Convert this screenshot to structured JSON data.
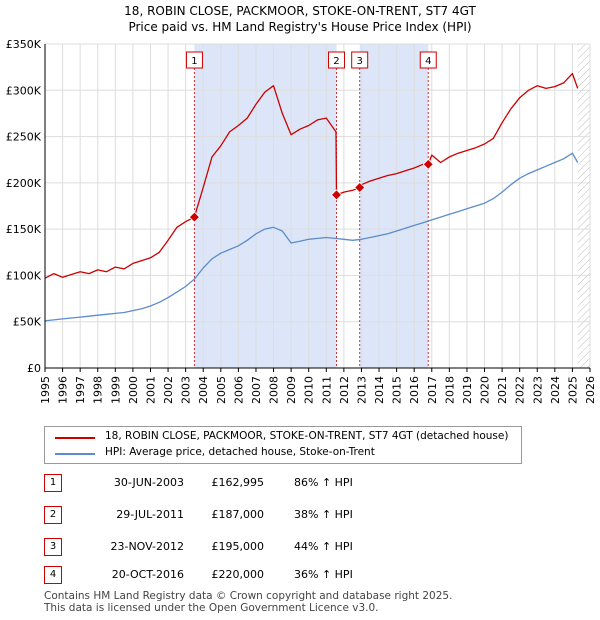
{
  "title_line1": "18, ROBIN CLOSE, PACKMOOR, STOKE-ON-TRENT, ST7 4GT",
  "title_line2": "Price paid vs. HM Land Registry's House Price Index (HPI)",
  "colors": {
    "property": "#cc0000",
    "hpi": "#5b8ccc",
    "shade": "#dce6f8",
    "marker_border": "#cc0000"
  },
  "chart_data": {
    "type": "line",
    "title": "Price paid vs. HM Land Registry's House Price Index (HPI)",
    "xlim": [
      1995,
      2026
    ],
    "ylim": [
      0,
      350000
    ],
    "y_ticks": [
      0,
      50000,
      100000,
      150000,
      200000,
      250000,
      300000,
      350000
    ],
    "y_tick_labels": [
      "£0",
      "£50K",
      "£100K",
      "£150K",
      "£200K",
      "£250K",
      "£300K",
      "£350K"
    ],
    "x_ticks": [
      "1995",
      "1996",
      "1997",
      "1998",
      "1999",
      "2000",
      "2001",
      "2002",
      "2003",
      "2004",
      "2005",
      "2006",
      "2007",
      "2008",
      "2009",
      "2010",
      "2011",
      "2012",
      "2013",
      "2014",
      "2015",
      "2016",
      "2017",
      "2018",
      "2019",
      "2020",
      "2021",
      "2022",
      "2023",
      "2024",
      "2025",
      "2026"
    ],
    "shaded_ranges": [
      [
        2003.5,
        2011.58
      ],
      [
        2012.9,
        2016.8
      ]
    ],
    "hatched_from": 2025.3,
    "series": [
      {
        "name": "18, ROBIN CLOSE, PACKMOOR, STOKE-ON-TRENT, ST7 4GT (detached house)",
        "color": "#cc0000",
        "x": [
          1995.0,
          1995.5,
          1996.0,
          1996.5,
          1997.0,
          1997.5,
          1998.0,
          1998.5,
          1999.0,
          1999.5,
          2000.0,
          2000.5,
          2001.0,
          2001.5,
          2002.0,
          2002.5,
          2003.0,
          2003.5,
          2004.0,
          2004.5,
          2005.0,
          2005.5,
          2006.0,
          2006.5,
          2007.0,
          2007.5,
          2008.0,
          2008.5,
          2009.0,
          2009.5,
          2010.0,
          2010.5,
          2011.0,
          2011.55,
          2011.58,
          2012.0,
          2012.5,
          2012.9,
          2013.0,
          2013.5,
          2014.0,
          2014.5,
          2015.0,
          2015.5,
          2016.0,
          2016.5,
          2016.8,
          2017.0,
          2017.5,
          2018.0,
          2018.5,
          2019.0,
          2019.5,
          2020.0,
          2020.5,
          2021.0,
          2021.5,
          2022.0,
          2022.5,
          2023.0,
          2023.5,
          2024.0,
          2024.5,
          2025.0,
          2025.3
        ],
        "y": [
          97000,
          102000,
          98000,
          101000,
          104000,
          102000,
          106000,
          104000,
          109000,
          107000,
          113000,
          116000,
          119000,
          125000,
          138000,
          152000,
          158000,
          162995,
          195000,
          228000,
          240000,
          255000,
          262000,
          270000,
          285000,
          298000,
          305000,
          275000,
          252000,
          258000,
          262000,
          268000,
          270000,
          255000,
          187000,
          190000,
          192000,
          195000,
          198000,
          202000,
          205000,
          208000,
          210000,
          213000,
          216000,
          220000,
          220000,
          230000,
          222000,
          228000,
          232000,
          235000,
          238000,
          242000,
          248000,
          265000,
          280000,
          292000,
          300000,
          305000,
          302000,
          304000,
          308000,
          318000,
          302000
        ]
      },
      {
        "name": "HPI: Average price, detached house, Stoke-on-Trent",
        "color": "#5b8ccc",
        "x": [
          1995.0,
          1995.5,
          1996.0,
          1996.5,
          1997.0,
          1997.5,
          1998.0,
          1998.5,
          1999.0,
          1999.5,
          2000.0,
          2000.5,
          2001.0,
          2001.5,
          2002.0,
          2002.5,
          2003.0,
          2003.5,
          2004.0,
          2004.5,
          2005.0,
          2005.5,
          2006.0,
          2006.5,
          2007.0,
          2007.5,
          2008.0,
          2008.5,
          2009.0,
          2009.5,
          2010.0,
          2010.5,
          2011.0,
          2011.5,
          2012.0,
          2012.5,
          2013.0,
          2013.5,
          2014.0,
          2014.5,
          2015.0,
          2015.5,
          2016.0,
          2016.5,
          2017.0,
          2017.5,
          2018.0,
          2018.5,
          2019.0,
          2019.5,
          2020.0,
          2020.5,
          2021.0,
          2021.5,
          2022.0,
          2022.5,
          2023.0,
          2023.5,
          2024.0,
          2024.5,
          2025.0,
          2025.3
        ],
        "y": [
          51000,
          52000,
          53000,
          54000,
          55000,
          56000,
          57000,
          58000,
          59000,
          60000,
          62000,
          64000,
          67000,
          71000,
          76000,
          82000,
          88000,
          96000,
          108000,
          118000,
          124000,
          128000,
          132000,
          138000,
          145000,
          150000,
          152000,
          148000,
          135000,
          137000,
          139000,
          140000,
          141000,
          140000,
          139000,
          138000,
          139000,
          141000,
          143000,
          145000,
          148000,
          151000,
          154000,
          157000,
          160000,
          163000,
          166000,
          169000,
          172000,
          175000,
          178000,
          183000,
          190000,
          198000,
          205000,
          210000,
          214000,
          218000,
          222000,
          226000,
          232000,
          222000
        ]
      }
    ],
    "sales": [
      {
        "num": "1",
        "x": 2003.5,
        "y": 162995
      },
      {
        "num": "2",
        "x": 2011.58,
        "y": 187000
      },
      {
        "num": "3",
        "x": 2012.9,
        "y": 195000
      },
      {
        "num": "4",
        "x": 2016.8,
        "y": 220000
      }
    ]
  },
  "legend": {
    "property_label": "18, ROBIN CLOSE, PACKMOOR, STOKE-ON-TRENT, ST7 4GT (detached house)",
    "hpi_label": "HPI: Average price, detached house, Stoke-on-Trent"
  },
  "sales_table": [
    {
      "num": "1",
      "date": "30-JUN-2003",
      "price": "£162,995",
      "hpi": "86% ↑ HPI"
    },
    {
      "num": "2",
      "date": "29-JUL-2011",
      "price": "£187,000",
      "hpi": "38% ↑ HPI"
    },
    {
      "num": "3",
      "date": "23-NOV-2012",
      "price": "£195,000",
      "hpi": "44% ↑ HPI"
    },
    {
      "num": "4",
      "date": "20-OCT-2016",
      "price": "£220,000",
      "hpi": "36% ↑ HPI"
    }
  ],
  "footer_line1": "Contains HM Land Registry data © Crown copyright and database right 2025.",
  "footer_line2": "This data is licensed under the Open Government Licence v3.0."
}
